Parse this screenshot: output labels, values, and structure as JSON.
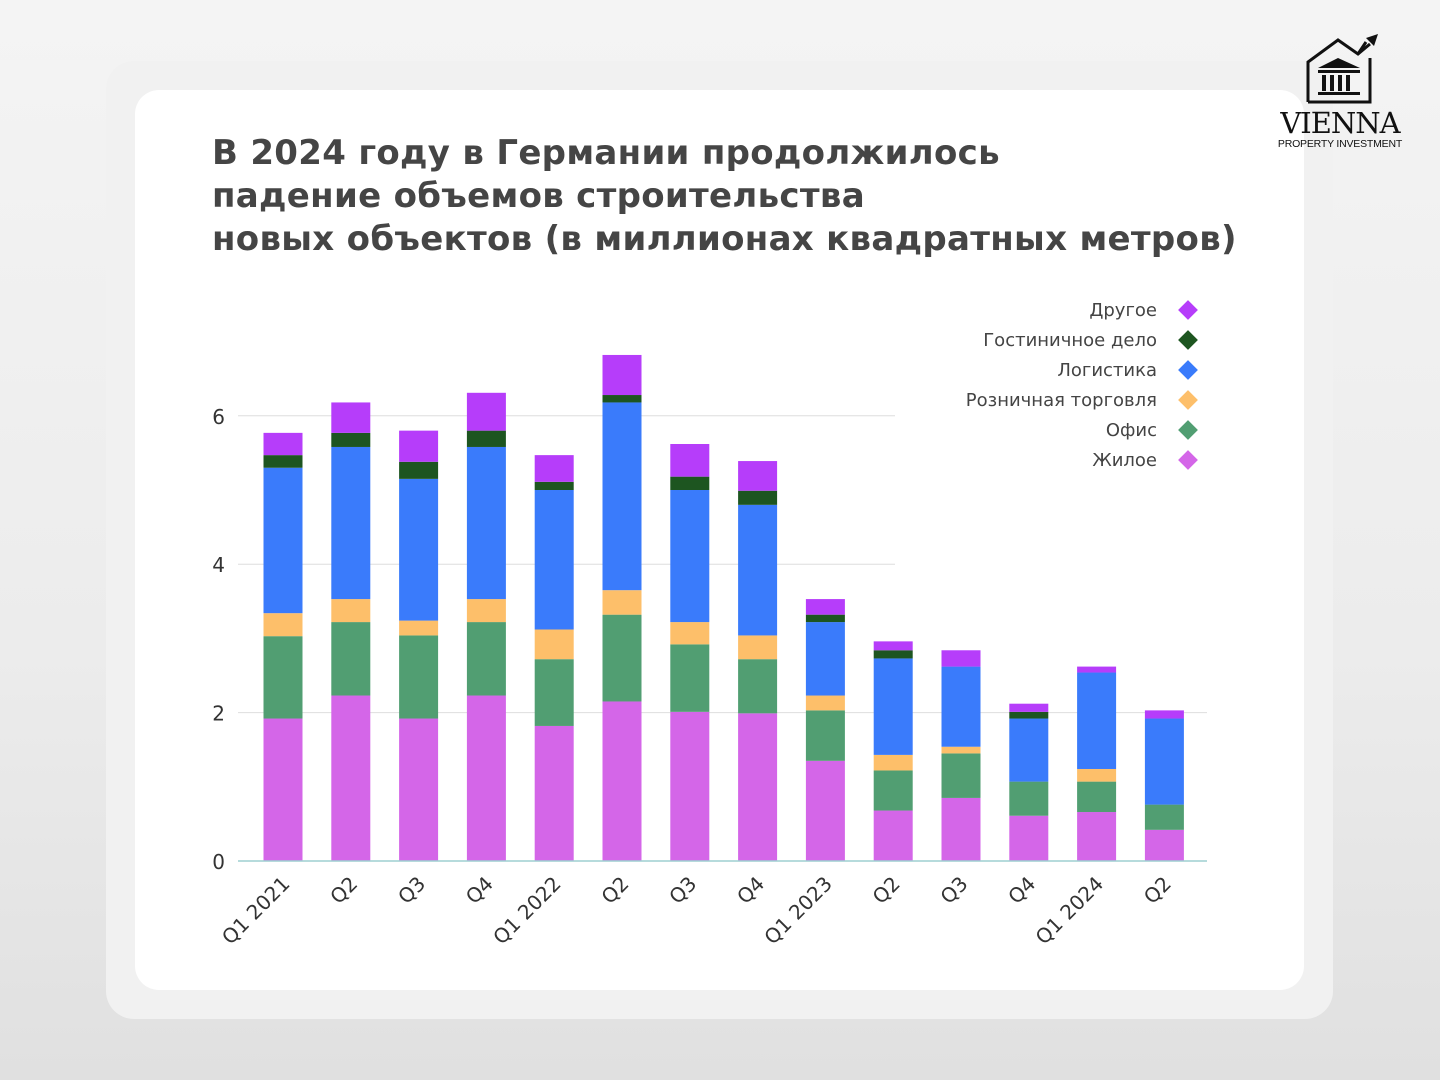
{
  "title_lines": [
    "В 2024 году в Германии продолжилось",
    "падение объемов строительства",
    "новых объектов (в миллионах квадратных метров)"
  ],
  "logo": {
    "name": "VIENNA",
    "subtitle": "PROPERTY INVESTMENT"
  },
  "chart_data": {
    "type": "bar",
    "stacked": true,
    "title": "В 2024 году в Германии продолжилось падение объемов строительства новых объектов (в миллионах квадратных метров)",
    "categories": [
      "Q1 2021",
      "Q2",
      "Q3",
      "Q4",
      "Q1 2022",
      "Q2",
      "Q3",
      "Q4",
      "Q1 2023",
      "Q2",
      "Q3",
      "Q4",
      "Q1 2024",
      "Q2"
    ],
    "ylim": [
      0,
      7
    ],
    "yticks": [
      0,
      2,
      4,
      6
    ],
    "grid": true,
    "legend_placement": "top-right",
    "series": [
      {
        "name": "Жилое",
        "color": "#d466e8",
        "values": [
          1.92,
          2.23,
          1.92,
          2.23,
          1.82,
          2.15,
          2.01,
          1.99,
          1.35,
          0.68,
          0.85,
          0.61,
          0.66,
          0.42
        ]
      },
      {
        "name": "Офис",
        "color": "#519e72",
        "values": [
          1.11,
          0.99,
          1.12,
          0.99,
          0.9,
          1.17,
          0.91,
          0.73,
          0.68,
          0.54,
          0.6,
          0.46,
          0.41,
          0.34
        ]
      },
      {
        "name": "Розничная торговля",
        "color": "#fdbf6a",
        "values": [
          0.31,
          0.31,
          0.2,
          0.31,
          0.4,
          0.33,
          0.3,
          0.32,
          0.2,
          0.21,
          0.09,
          0.0,
          0.17,
          0.0
        ]
      },
      {
        "name": "Логистика",
        "color": "#3a7bfb",
        "values": [
          1.96,
          2.05,
          1.91,
          2.05,
          1.88,
          2.53,
          1.78,
          1.76,
          0.99,
          1.3,
          1.08,
          0.85,
          1.3,
          1.16
        ]
      },
      {
        "name": "Гостиничное дело",
        "color": "#1d5520",
        "values": [
          0.17,
          0.19,
          0.23,
          0.22,
          0.11,
          0.1,
          0.18,
          0.19,
          0.1,
          0.11,
          0.0,
          0.09,
          0.0,
          0.0
        ]
      },
      {
        "name": "Другое",
        "color": "#b63dfa",
        "values": [
          0.3,
          0.41,
          0.42,
          0.51,
          0.36,
          0.54,
          0.44,
          0.4,
          0.21,
          0.12,
          0.22,
          0.11,
          0.08,
          0.11
        ]
      }
    ]
  }
}
